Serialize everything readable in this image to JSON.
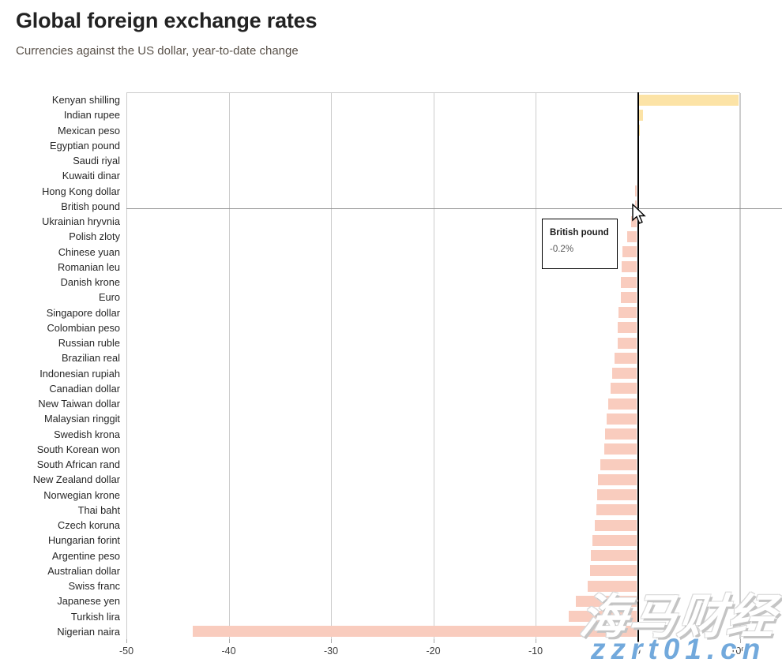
{
  "header": {
    "title": "Global foreign exchange rates",
    "subtitle": "Currencies against the US dollar, year-to-date change"
  },
  "chart_data": {
    "type": "bar",
    "orientation": "horizontal",
    "title": "Global foreign exchange rates",
    "subtitle": "Currencies against the US dollar, year-to-date change",
    "unit": "%",
    "categories": [
      "Kenyan shilling",
      "Indian rupee",
      "Mexican peso",
      "Egyptian pound",
      "Saudi riyal",
      "Kuwaiti dinar",
      "Hong Kong dollar",
      "British pound",
      "Ukrainian hryvnia",
      "Polish zloty",
      "Chinese yuan",
      "Romanian leu",
      "Danish krone",
      "Euro",
      "Singapore dollar",
      "Colombian peso",
      "Russian ruble",
      "Brazilian real",
      "Indonesian rupiah",
      "Canadian dollar",
      "New Taiwan dollar",
      "Malaysian ringgit",
      "Swedish krona",
      "South Korean won",
      "South African rand",
      "New Zealand dollar",
      "Norwegian krone",
      "Thai baht",
      "Czech koruna",
      "Hungarian forint",
      "Argentine peso",
      "Australian dollar",
      "Swiss franc",
      "Japanese yen",
      "Turkish lira",
      "Nigerian naira"
    ],
    "values": [
      9.8,
      0.4,
      0.1,
      0.0,
      0.0,
      0.0,
      -0.2,
      -0.2,
      -0.6,
      -1.0,
      -1.4,
      -1.5,
      -1.6,
      -1.6,
      -1.8,
      -1.9,
      -1.9,
      -2.2,
      -2.4,
      -2.6,
      -2.8,
      -3.0,
      -3.1,
      -3.2,
      -3.6,
      -3.8,
      -3.9,
      -4.0,
      -4.1,
      -4.4,
      -4.5,
      -4.6,
      -4.8,
      -6.0,
      -6.7,
      -43.4
    ],
    "xlim": [
      -50,
      10
    ],
    "x_tick_labels": [
      "-50",
      "-40",
      "-30",
      "-20",
      "-10",
      "0",
      "10%"
    ],
    "x_tick_values": [
      -50,
      -40,
      -30,
      -20,
      -10,
      0,
      10
    ],
    "grid": true,
    "colors": {
      "positive_bar": "#fce3a6",
      "negative_bar": "#f9ccbe",
      "zero_line": "#000000",
      "gridline": "#cccccc",
      "hover_line": "#8f8f8f"
    },
    "highlighted_category": "British pound"
  },
  "tooltip": {
    "title": "British pound",
    "value": "-0.2%"
  },
  "watermarks": {
    "cjk": "海马财经",
    "url": "zzrt01.cn"
  }
}
